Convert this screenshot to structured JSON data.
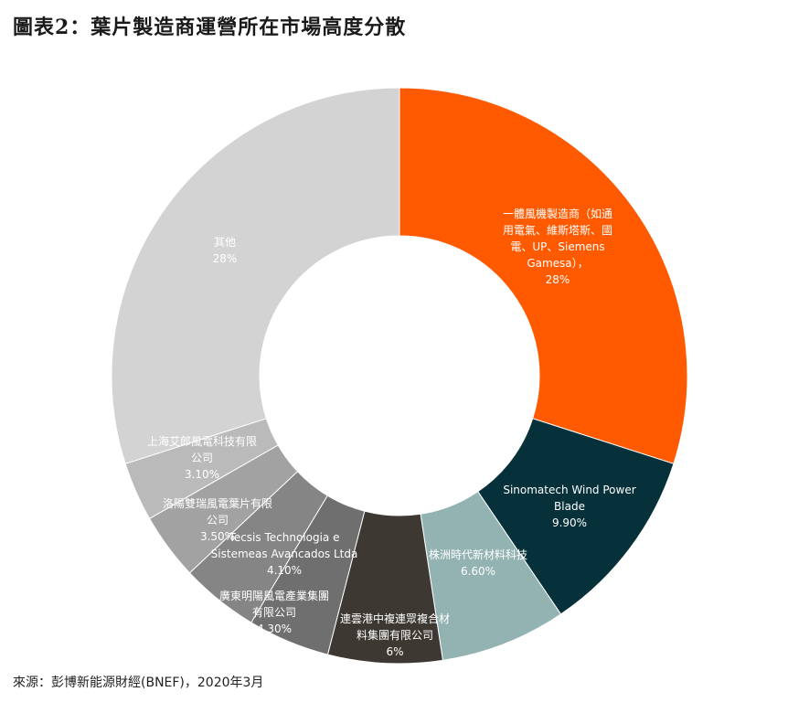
{
  "title": "圖表2：葉片製造商運營所在市場高度分散",
  "source": "來源：彭博新能源財經(BNEF)，2020年3月",
  "chart_data": {
    "type": "pie",
    "donut": true,
    "series": [
      {
        "labels": [
          "一體風機製造商（如通用電氣、維斯塔斯、國電、UP、Siemens Gamesa），",
          "Sinomatech Wind Power Blade",
          "株洲時代新材料科技",
          "連雲港中複連眾複合材料集團有限公司",
          "廣東明陽風電產業集團有限公司",
          "Tecsis Technologia e Sistemeas Avancados Ltda",
          "洛陽雙瑞風電葉片有限公司",
          "上海艾郎風電科技有限公司",
          "其他"
        ],
        "values": [
          28,
          9.9,
          6.6,
          6,
          4.3,
          4.1,
          3.5,
          3.1,
          28
        ],
        "value_labels": [
          "28%",
          "9.90%",
          "6.60%",
          "6%",
          "4.30%",
          "4.10%",
          "3.50%",
          "3.10%",
          "28%"
        ],
        "colors": [
          "#ff5a00",
          "#06313a",
          "#93b3b2",
          "#3d3832",
          "#6f6f6f",
          "#858585",
          "#a2a2a2",
          "#bababa",
          "#d3d3d3"
        ]
      }
    ],
    "label_lines": [
      [
        "一體風機製造商（如通",
        "用電氣、維斯塔斯、國",
        "電、UP、Siemens",
        "Gamesa），"
      ],
      [
        "Sinomatech Wind Power",
        "Blade"
      ],
      [
        "株洲時代新材料科技"
      ],
      [
        "連雲港中複連眾複合材",
        "料集團有限公司"
      ],
      [
        "廣東明陽風電產業集團",
        "有限公司"
      ],
      [
        "Tecsis Technologia e",
        "Sistemeas Avancados Ltda"
      ],
      [
        "洛陽雙瑞風電葉片有限",
        "公司"
      ],
      [
        "上海艾郎風電科技有限",
        "公司"
      ],
      [
        "其他"
      ]
    ],
    "label_color": "#ffffff"
  }
}
